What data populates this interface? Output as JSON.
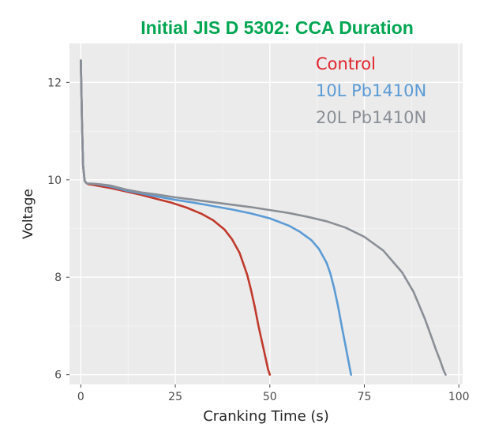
{
  "chart_data": {
    "type": "line",
    "title": "Initial JIS D 5302: CCA Duration",
    "xlabel": "Cranking Time (s)",
    "ylabel": "Voltage",
    "xlim": [
      -3,
      101
    ],
    "ylim": [
      5.8,
      12.8
    ],
    "x_ticks": [
      0,
      25,
      50,
      75,
      100
    ],
    "y_ticks": [
      6,
      8,
      10,
      12
    ],
    "grid": true,
    "legend_position": "top-right",
    "colors": {
      "title": "#00A651",
      "panel": "#EBEBEB",
      "grid_major": "#FFFFFF",
      "grid_minor": "#F5F5F5"
    },
    "series": [
      {
        "name": "Control",
        "color": "#C0392B",
        "legend_color": "#E0242B",
        "x": [
          0,
          0.3,
          0.6,
          1.0,
          1.5,
          2,
          3,
          5,
          8,
          12,
          16,
          20,
          24,
          28,
          32,
          35,
          38,
          40,
          42,
          44,
          45,
          46,
          47,
          48,
          49,
          49.5,
          50
        ],
        "y": [
          12.45,
          11.2,
          10.3,
          9.98,
          9.93,
          9.91,
          9.9,
          9.87,
          9.83,
          9.76,
          9.69,
          9.61,
          9.53,
          9.43,
          9.3,
          9.17,
          8.98,
          8.78,
          8.5,
          8.05,
          7.75,
          7.4,
          7.0,
          6.65,
          6.3,
          6.12,
          6.0
        ]
      },
      {
        "name": "10L Pb1410N",
        "color": "#5B9BD5",
        "legend_color": "#5B9BD5",
        "x": [
          0,
          0.3,
          0.6,
          1.0,
          1.5,
          2,
          3,
          5,
          8,
          12,
          16,
          20,
          25,
          30,
          35,
          40,
          45,
          50,
          55,
          58,
          61,
          63,
          65,
          66,
          67,
          68,
          69,
          70,
          71,
          71.5
        ],
        "y": [
          12.45,
          11.2,
          10.3,
          9.98,
          9.93,
          9.92,
          9.92,
          9.9,
          9.86,
          9.78,
          9.72,
          9.66,
          9.59,
          9.53,
          9.46,
          9.39,
          9.31,
          9.21,
          9.06,
          8.93,
          8.76,
          8.58,
          8.3,
          8.08,
          7.78,
          7.42,
          7.0,
          6.6,
          6.2,
          6.0
        ]
      },
      {
        "name": "20L Pb1410N",
        "color": "#8A8F96",
        "legend_color": "#8A8F96",
        "x": [
          0,
          0.3,
          0.6,
          1.0,
          1.5,
          2,
          3,
          5,
          8,
          12,
          16,
          20,
          25,
          30,
          35,
          40,
          45,
          50,
          55,
          60,
          65,
          70,
          75,
          80,
          85,
          88,
          91,
          93,
          94,
          95,
          96,
          96.5
        ],
        "y": [
          12.45,
          11.2,
          10.3,
          9.98,
          9.93,
          9.92,
          9.92,
          9.91,
          9.88,
          9.8,
          9.74,
          9.7,
          9.64,
          9.59,
          9.54,
          9.49,
          9.44,
          9.38,
          9.32,
          9.24,
          9.15,
          9.02,
          8.83,
          8.55,
          8.1,
          7.7,
          7.15,
          6.72,
          6.5,
          6.3,
          6.08,
          6.0
        ]
      }
    ]
  }
}
